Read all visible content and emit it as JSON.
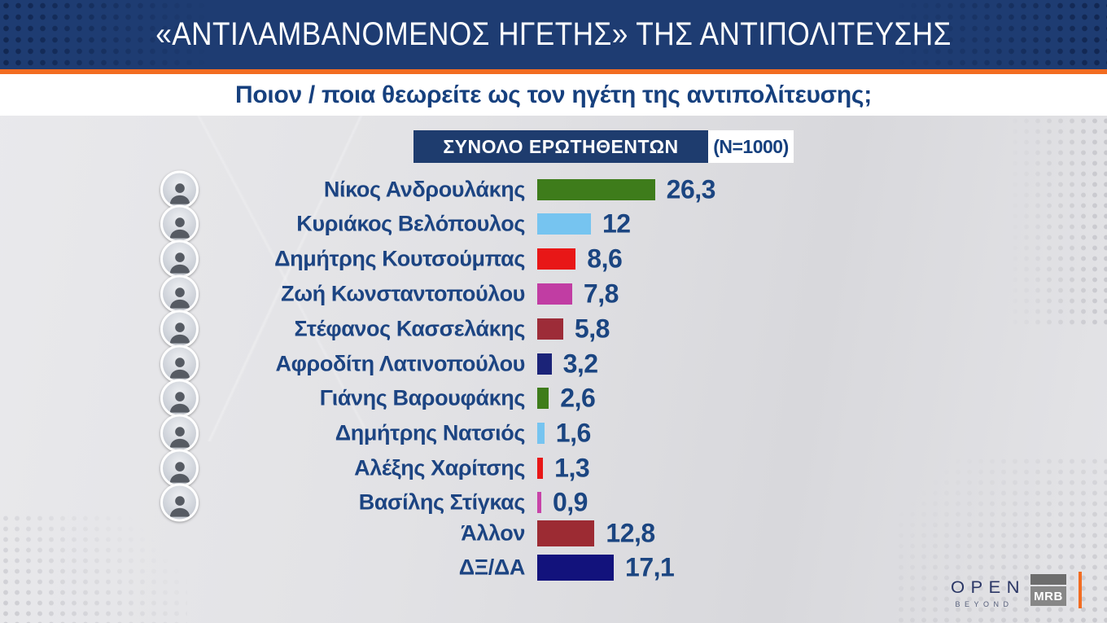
{
  "header": {
    "title": "«ΑΝΤΙΛΑΜΒΑΝΟΜΕΝΟΣ ΗΓΕΤΗΣ» ΤΗΣ ΑΝΤΙΠΟΛΙΤΕΥΣΗΣ"
  },
  "question": "Ποιον / ποια θεωρείτε ως τον ηγέτη της αντιπολίτευσης;",
  "sample": {
    "label": "ΣΥΝΟΛΟ ΕΡΩΤΗΘΕΝΤΩΝ",
    "n_label": "(N=1000)"
  },
  "chart_data": {
    "type": "bar",
    "orientation": "horizontal",
    "title": "«ΑΝΤΙΛΑΜΒΑΝΟΜΕΝΟΣ ΗΓΕΤΗΣ» ΤΗΣ ΑΝΤΙΠΟΛΙΤΕΥΣΗΣ",
    "subtitle": "Ποιον / ποια θεωρείτε ως τον ηγέτη της αντιπολίτευσης;",
    "sample_label": "ΣΥΝΟΛΟ ΕΡΩΤΗΘΕΝΤΩΝ (N=1000)",
    "unit": "%",
    "categories": [
      "Νίκος Ανδρουλάκης",
      "Κυριάκος Βελόπουλος",
      "Δημήτρης Κουτσούμπας",
      "Ζωή Κωνσταντοπούλου",
      "Στέφανος Κασσελάκης",
      "Αφροδίτη Λατινοπούλου",
      "Γιάνης Βαρουφάκης",
      "Δημήτρης Νατσιός",
      "Αλέξης Χαρίτσης",
      "Βασίλης Στίγκας",
      "Άλλον",
      "ΔΞ/ΔΑ"
    ],
    "values": [
      26.3,
      12,
      8.6,
      7.8,
      5.8,
      3.2,
      2.6,
      1.6,
      1.3,
      0.9,
      12.8,
      17.1
    ],
    "display_values": [
      "26,3",
      "12",
      "8,6",
      "7,8",
      "5,8",
      "3,2",
      "2,6",
      "1,6",
      "1,3",
      "0,9",
      "12,8",
      "17,1"
    ],
    "bar_colors": [
      "#3e7c1b",
      "#76c4f0",
      "#e81717",
      "#c13da3",
      "#9d2c38",
      "#1b2378",
      "#3e7c1b",
      "#76c4f0",
      "#e81717",
      "#c743a8",
      "#9c2b33",
      "#12127c"
    ],
    "has_photo": [
      true,
      true,
      true,
      true,
      true,
      true,
      true,
      true,
      true,
      true,
      false,
      false
    ],
    "xlim": [
      0,
      30
    ],
    "legend": "none",
    "grid": false
  },
  "footer": {
    "open_label": "OPEN",
    "open_sub": "BEYOND",
    "mrb_label": "MRB"
  },
  "colors": {
    "header_bg": "#1e3c72",
    "accent_orange": "#f26c21",
    "text_blue": "#1b4581",
    "sample_box_bg": "#1e3c6e",
    "question_bg": "#ffffff"
  }
}
